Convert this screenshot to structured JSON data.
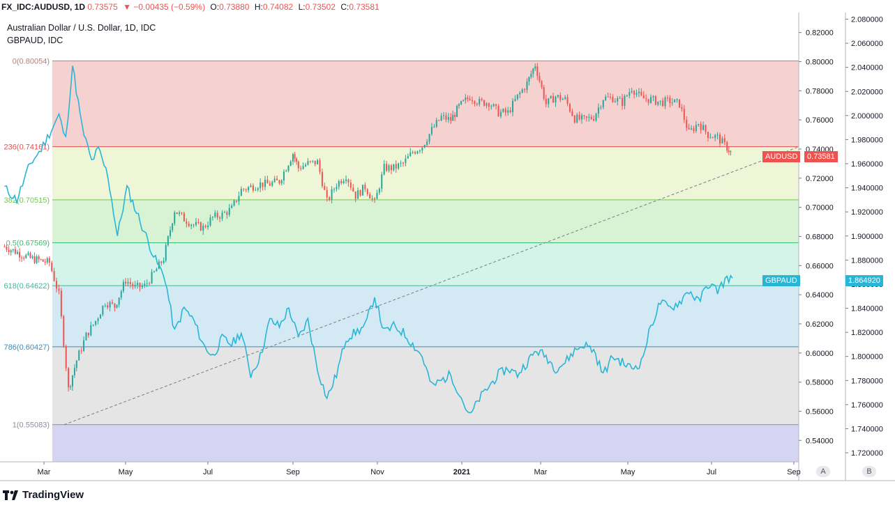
{
  "header": {
    "symbol": "FX_IDC:AUDUSD, 1D",
    "last": "0.73575",
    "change": "−0.00435 (−0.59%)",
    "open_label": "O:",
    "open": "0.73880",
    "high_label": "H:",
    "high": "0.74082",
    "low_label": "L:",
    "low": "0.73502",
    "close_label": "C:",
    "close": "0.73581"
  },
  "legend": {
    "main": "Australian Dollar / U.S. Dollar, 1D, IDC",
    "compare": "GBPAUD, IDC"
  },
  "tags": {
    "audusd_name": "AUDUSD",
    "audusd_price": "0.73581",
    "gbpaud_name": "GBPAUD",
    "gbpaud_price": "1.864920"
  },
  "axis_buttons": {
    "left": "A",
    "right": "B"
  },
  "brand": "TradingView",
  "colors": {
    "up": "#26a69a",
    "down": "#ef5350",
    "compare_line": "#29b6d6",
    "fib_0": "#f5d1d0",
    "fib_236": "#eef6d7",
    "fib_382": "#d7f3d4",
    "fib_5": "#d4f4ea",
    "fib_618": "#d3eaf5",
    "fib_786": "#e5e5e5",
    "fib_1": "#d5d5f3"
  },
  "chart_data": {
    "type": "candlestick+line",
    "title": "Australian Dollar / U.S. Dollar, 1D, IDC",
    "x_ticks": [
      "Mar",
      "May",
      "Jul",
      "Sep",
      "Nov",
      "2021",
      "Mar",
      "May",
      "Jul",
      "Sep"
    ],
    "left_axis": {
      "ticks": [
        "0.82000",
        "0.80000",
        "0.78000",
        "0.76000",
        "0.74000",
        "0.72000",
        "0.70000",
        "0.68000",
        "0.66000",
        "0.64000",
        "0.62000",
        "0.60000",
        "0.58000",
        "0.56000",
        "0.54000"
      ],
      "range": [
        0.5253,
        0.8337
      ]
    },
    "right_axis": {
      "ticks": [
        "2.080000",
        "2.060000",
        "2.040000",
        "2.020000",
        "2.000000",
        "1.980000",
        "1.960000",
        "1.940000",
        "1.920000",
        "1.900000",
        "1.880000",
        "1.860000",
        "1.840000",
        "1.820000",
        "1.800000",
        "1.780000",
        "1.760000",
        "1.740000",
        "1.720000"
      ],
      "range": [
        1.7125,
        2.0855
      ]
    },
    "fib_levels": [
      {
        "label": "0(0.80054)",
        "value": 0.80054
      },
      {
        "label": "236(0.74161)",
        "value": 0.74161
      },
      {
        "label": "382(0.70515)",
        "value": 0.70515
      },
      {
        "label": "0.5(0.67569)",
        "value": 0.67569
      },
      {
        "label": "618(0.64622)",
        "value": 0.64622
      },
      {
        "label": "786(0.60427)",
        "value": 0.60427
      },
      {
        "label": "1(0.55083)",
        "value": 0.55083
      }
    ],
    "audusd_close": [
      [
        "2020-02-01",
        0.673
      ],
      [
        "2020-02-20",
        0.665
      ],
      [
        "2020-03-05",
        0.662
      ],
      [
        "2020-03-12",
        0.64
      ],
      [
        "2020-03-19",
        0.575
      ],
      [
        "2020-03-25",
        0.595
      ],
      [
        "2020-04-01",
        0.612
      ],
      [
        "2020-04-08",
        0.622
      ],
      [
        "2020-04-15",
        0.635
      ],
      [
        "2020-04-22",
        0.632
      ],
      [
        "2020-04-30",
        0.65
      ],
      [
        "2020-05-07",
        0.645
      ],
      [
        "2020-05-14",
        0.646
      ],
      [
        "2020-05-21",
        0.655
      ],
      [
        "2020-05-28",
        0.665
      ],
      [
        "2020-06-05",
        0.698
      ],
      [
        "2020-06-12",
        0.692
      ],
      [
        "2020-06-19",
        0.688
      ],
      [
        "2020-06-26",
        0.686
      ],
      [
        "2020-07-03",
        0.693
      ],
      [
        "2020-07-10",
        0.695
      ],
      [
        "2020-07-17",
        0.699
      ],
      [
        "2020-07-24",
        0.712
      ],
      [
        "2020-07-31",
        0.714
      ],
      [
        "2020-08-07",
        0.716
      ],
      [
        "2020-08-14",
        0.716
      ],
      [
        "2020-08-21",
        0.718
      ],
      [
        "2020-08-31",
        0.737
      ],
      [
        "2020-09-04",
        0.727
      ],
      [
        "2020-09-11",
        0.73
      ],
      [
        "2020-09-18",
        0.731
      ],
      [
        "2020-09-25",
        0.704
      ],
      [
        "2020-10-02",
        0.716
      ],
      [
        "2020-10-09",
        0.722
      ],
      [
        "2020-10-16",
        0.708
      ],
      [
        "2020-10-23",
        0.714
      ],
      [
        "2020-10-30",
        0.703
      ],
      [
        "2020-11-06",
        0.727
      ],
      [
        "2020-11-13",
        0.727
      ],
      [
        "2020-11-20",
        0.73
      ],
      [
        "2020-11-27",
        0.738
      ],
      [
        "2020-12-04",
        0.742
      ],
      [
        "2020-12-11",
        0.753
      ],
      [
        "2020-12-18",
        0.762
      ],
      [
        "2020-12-25",
        0.76
      ],
      [
        "2020-12-31",
        0.769
      ],
      [
        "2021-01-08",
        0.776
      ],
      [
        "2021-01-15",
        0.772
      ],
      [
        "2021-01-22",
        0.772
      ],
      [
        "2021-01-29",
        0.765
      ],
      [
        "2021-02-05",
        0.765
      ],
      [
        "2021-02-12",
        0.776
      ],
      [
        "2021-02-19",
        0.785
      ],
      [
        "2021-02-25",
        0.798
      ],
      [
        "2021-03-05",
        0.771
      ],
      [
        "2021-03-12",
        0.776
      ],
      [
        "2021-03-19",
        0.774
      ],
      [
        "2021-03-26",
        0.761
      ],
      [
        "2021-04-02",
        0.76
      ],
      [
        "2021-04-09",
        0.762
      ],
      [
        "2021-04-16",
        0.775
      ],
      [
        "2021-04-23",
        0.775
      ],
      [
        "2021-04-30",
        0.772
      ],
      [
        "2021-05-07",
        0.782
      ],
      [
        "2021-05-14",
        0.775
      ],
      [
        "2021-05-21",
        0.774
      ],
      [
        "2021-05-28",
        0.772
      ],
      [
        "2021-06-04",
        0.773
      ],
      [
        "2021-06-11",
        0.771
      ],
      [
        "2021-06-18",
        0.751
      ],
      [
        "2021-06-25",
        0.758
      ],
      [
        "2021-07-02",
        0.75
      ],
      [
        "2021-07-09",
        0.748
      ],
      [
        "2021-07-16",
        0.741
      ],
      [
        "2021-07-20",
        0.736
      ]
    ],
    "gbpaud": [
      [
        "2020-02-01",
        1.94
      ],
      [
        "2020-02-10",
        1.93
      ],
      [
        "2020-02-20",
        1.96
      ],
      [
        "2020-02-28",
        1.972
      ],
      [
        "2020-03-05",
        1.985
      ],
      [
        "2020-03-12",
        2.0
      ],
      [
        "2020-03-17",
        1.98
      ],
      [
        "2020-03-22",
        2.042
      ],
      [
        "2020-03-29",
        1.99
      ],
      [
        "2020-04-05",
        1.962
      ],
      [
        "2020-04-10",
        1.972
      ],
      [
        "2020-04-17",
        1.95
      ],
      [
        "2020-04-24",
        1.9
      ],
      [
        "2020-05-01",
        1.94
      ],
      [
        "2020-05-08",
        1.92
      ],
      [
        "2020-05-15",
        1.9
      ],
      [
        "2020-05-22",
        1.88
      ],
      [
        "2020-05-29",
        1.865
      ],
      [
        "2020-06-05",
        1.82
      ],
      [
        "2020-06-12",
        1.84
      ],
      [
        "2020-06-19",
        1.83
      ],
      [
        "2020-06-26",
        1.81
      ],
      [
        "2020-07-03",
        1.8
      ],
      [
        "2020-07-10",
        1.815
      ],
      [
        "2020-07-17",
        1.81
      ],
      [
        "2020-07-24",
        1.82
      ],
      [
        "2020-07-31",
        1.785
      ],
      [
        "2020-08-07",
        1.8
      ],
      [
        "2020-08-14",
        1.83
      ],
      [
        "2020-08-21",
        1.825
      ],
      [
        "2020-08-28",
        1.84
      ],
      [
        "2020-09-04",
        1.815
      ],
      [
        "2020-09-11",
        1.83
      ],
      [
        "2020-09-18",
        1.79
      ],
      [
        "2020-09-25",
        1.765
      ],
      [
        "2020-10-02",
        1.785
      ],
      [
        "2020-10-09",
        1.815
      ],
      [
        "2020-10-16",
        1.82
      ],
      [
        "2020-10-23",
        1.825
      ],
      [
        "2020-10-30",
        1.85
      ],
      [
        "2020-11-06",
        1.82
      ],
      [
        "2020-11-13",
        1.825
      ],
      [
        "2020-11-20",
        1.82
      ],
      [
        "2020-11-27",
        1.81
      ],
      [
        "2020-12-04",
        1.8
      ],
      [
        "2020-12-11",
        1.775
      ],
      [
        "2020-12-18",
        1.78
      ],
      [
        "2020-12-25",
        1.785
      ],
      [
        "2020-12-31",
        1.77
      ],
      [
        "2021-01-08",
        1.75
      ],
      [
        "2021-01-15",
        1.765
      ],
      [
        "2021-01-22",
        1.775
      ],
      [
        "2021-01-29",
        1.785
      ],
      [
        "2021-02-05",
        1.79
      ],
      [
        "2021-02-12",
        1.785
      ],
      [
        "2021-02-19",
        1.795
      ],
      [
        "2021-02-26",
        1.805
      ],
      [
        "2021-03-05",
        1.8
      ],
      [
        "2021-03-12",
        1.79
      ],
      [
        "2021-03-19",
        1.795
      ],
      [
        "2021-03-26",
        1.805
      ],
      [
        "2021-04-02",
        1.81
      ],
      [
        "2021-04-09",
        1.805
      ],
      [
        "2021-04-16",
        1.785
      ],
      [
        "2021-04-23",
        1.8
      ],
      [
        "2021-04-30",
        1.795
      ],
      [
        "2021-05-07",
        1.79
      ],
      [
        "2021-05-14",
        1.795
      ],
      [
        "2021-05-21",
        1.825
      ],
      [
        "2021-05-28",
        1.845
      ],
      [
        "2021-06-04",
        1.84
      ],
      [
        "2021-06-11",
        1.845
      ],
      [
        "2021-06-18",
        1.855
      ],
      [
        "2021-06-25",
        1.845
      ],
      [
        "2021-07-02",
        1.86
      ],
      [
        "2021-07-09",
        1.855
      ],
      [
        "2021-07-16",
        1.865
      ],
      [
        "2021-07-20",
        1.865
      ]
    ]
  }
}
